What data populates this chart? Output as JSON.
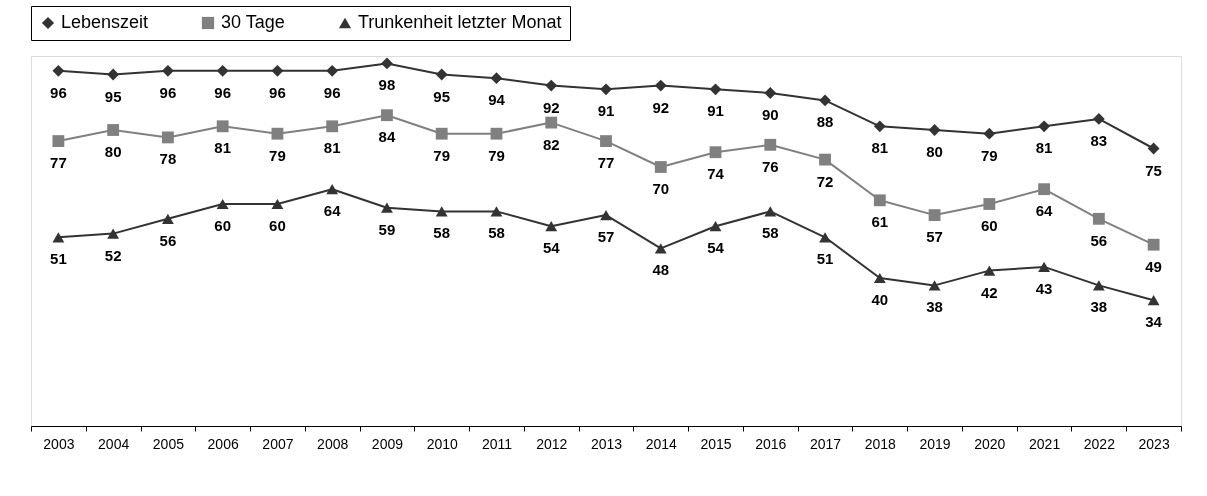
{
  "chart_data": {
    "type": "line",
    "categories": [
      "2003",
      "2004",
      "2005",
      "2006",
      "2007",
      "2008",
      "2009",
      "2010",
      "2011",
      "2012",
      "2013",
      "2014",
      "2015",
      "2016",
      "2017",
      "2018",
      "2019",
      "2020",
      "2021",
      "2022",
      "2023"
    ],
    "series": [
      {
        "name": "Lebenszeit",
        "color": "#333333",
        "marker": "diamond",
        "values": [
          96,
          95,
          96,
          96,
          96,
          96,
          98,
          95,
          94,
          92,
          91,
          92,
          91,
          90,
          88,
          81,
          80,
          79,
          81,
          83,
          75
        ]
      },
      {
        "name": "30 Tage",
        "color": "#808080",
        "marker": "square",
        "values": [
          77,
          80,
          78,
          81,
          79,
          81,
          84,
          79,
          79,
          82,
          77,
          70,
          74,
          76,
          72,
          61,
          57,
          60,
          64,
          56,
          49
        ]
      },
      {
        "name": "Trunkenheit letzter Monat",
        "color": "#333333",
        "marker": "triangle",
        "values": [
          51,
          52,
          56,
          60,
          60,
          64,
          59,
          58,
          58,
          54,
          57,
          48,
          54,
          58,
          51,
          40,
          38,
          42,
          43,
          38,
          34
        ]
      }
    ],
    "ylim": [
      0,
      100
    ],
    "tick_labels": "x",
    "data_labels": true,
    "legend": "top",
    "grid": false,
    "line_style": "solid"
  }
}
